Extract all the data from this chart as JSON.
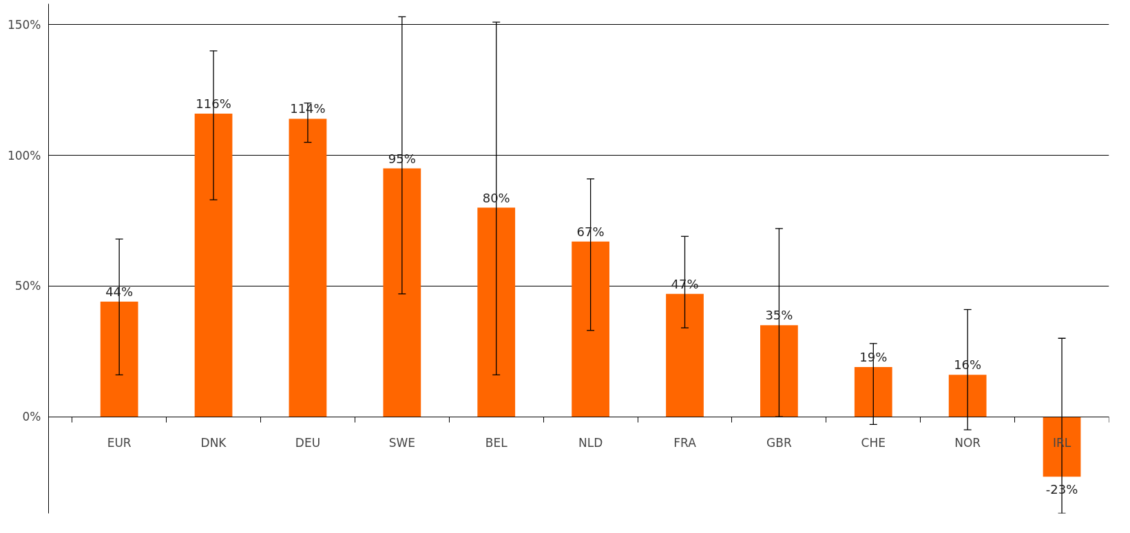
{
  "chart_data": {
    "type": "bar",
    "categories": [
      "EUR",
      "DNK",
      "DEU",
      "SWE",
      "BEL",
      "NLD",
      "FRA",
      "GBR",
      "CHE",
      "NOR",
      "IRL"
    ],
    "values": [
      44,
      116,
      114,
      95,
      80,
      67,
      47,
      35,
      19,
      16,
      -23
    ],
    "value_labels": [
      "44%",
      "116%",
      "114%",
      "95%",
      "80%",
      "67%",
      "47%",
      "35%",
      "19%",
      "16%",
      "-23%"
    ],
    "color": "#ff6600",
    "errors": [
      [
        16,
        68
      ],
      [
        83,
        140
      ],
      [
        105,
        120
      ],
      [
        47,
        153
      ],
      [
        16,
        151
      ],
      [
        33,
        91
      ],
      [
        34,
        69
      ],
      [
        0,
        72
      ],
      [
        -3,
        28
      ],
      [
        -5,
        41
      ],
      [
        -37,
        30
      ]
    ],
    "ylim": [
      -37,
      158
    ],
    "yticks": [
      {
        "value": 0,
        "label": "0%"
      },
      {
        "value": 50,
        "label": "50%"
      },
      {
        "value": 100,
        "label": "100%"
      },
      {
        "value": 150,
        "label": "150%"
      }
    ],
    "grid": "y"
  }
}
